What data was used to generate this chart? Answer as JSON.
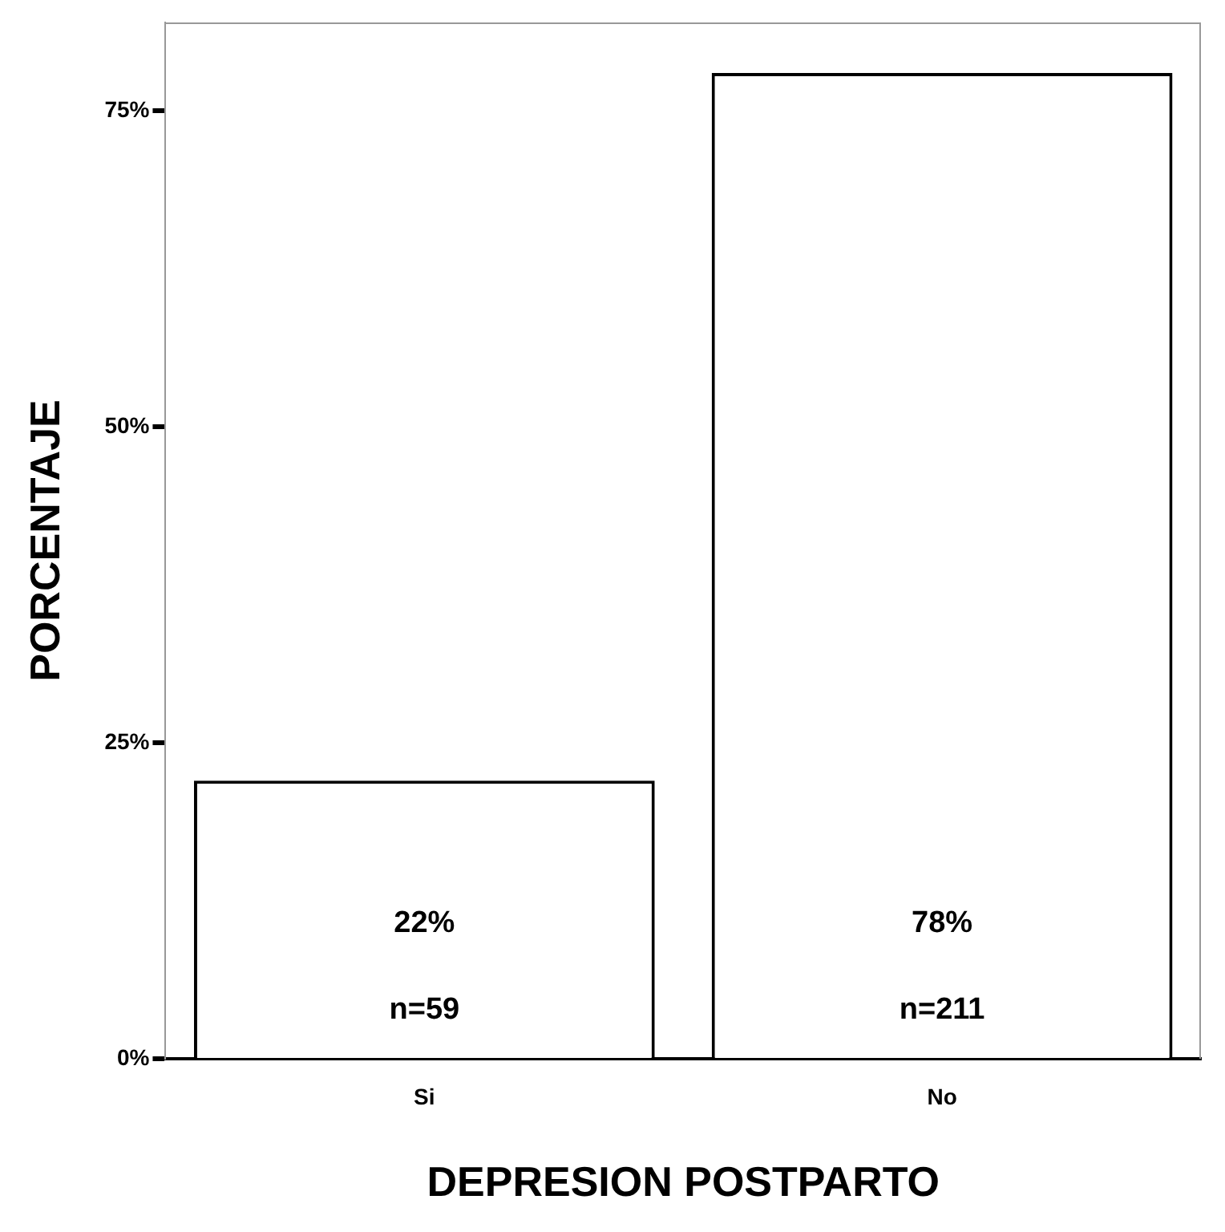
{
  "chart_data": {
    "type": "bar",
    "xlabel": "DEPRESION POSTPARTO",
    "ylabel": "PORCENTAJE",
    "categories": [
      "Si",
      "No"
    ],
    "series": [
      {
        "color": "#ffffff",
        "values": [
          22,
          78
        ],
        "value_labels": [
          "22%",
          "78%"
        ]
      }
    ],
    "ylim": [
      0,
      82
    ],
    "yticks": [
      {
        "value": 0,
        "label": "0%"
      },
      {
        "value": 25,
        "label": "25%"
      },
      {
        "value": 50,
        "label": "50%"
      },
      {
        "value": 75,
        "label": "75%"
      }
    ],
    "annotations": [
      "n=59",
      "n=211"
    ],
    "grid": false,
    "legend": false
  }
}
